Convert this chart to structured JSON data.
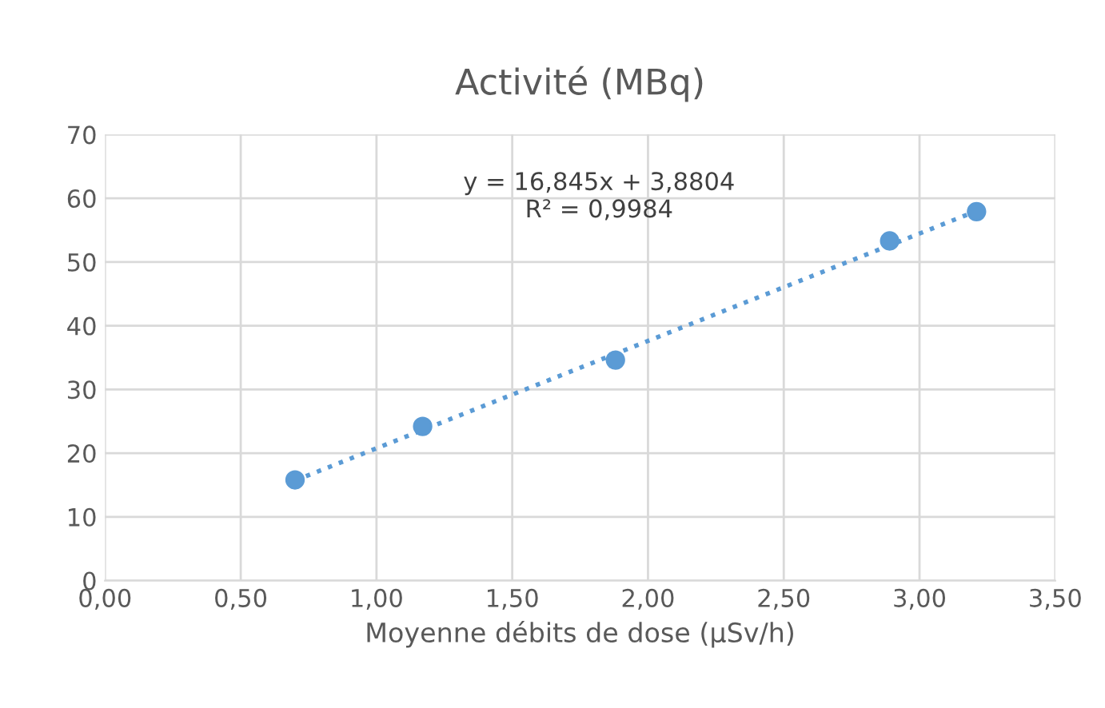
{
  "chart_data": {
    "type": "scatter",
    "title": "Activité (MBq)",
    "xlabel": "Moyenne débits de dose (µSv/h)",
    "annotations": [
      "y = 16,845x + 3,8804\nR² = 0,9984"
    ],
    "series": [
      {
        "color": "#5b9bd5",
        "marker": "circle",
        "x": [
          0.7,
          1.17,
          1.88,
          2.89,
          3.21
        ],
        "values": [
          15.8,
          24.2,
          34.6,
          53.3,
          57.9
        ]
      },
      {
        "type": "line",
        "color": "#5b9bd5",
        "line_style": "dotted",
        "marker": "none",
        "x": [
          0.7,
          3.21
        ],
        "values": [
          15.7,
          58.0
        ]
      }
    ],
    "xlim": [
      0,
      3.5
    ],
    "xticks": [
      {
        "value": 0,
        "label": "0,00"
      },
      {
        "value": 0.5,
        "label": "0,50"
      },
      {
        "value": 1,
        "label": "1,00"
      },
      {
        "value": 1.5,
        "label": "1,50"
      },
      {
        "value": 2,
        "label": "2,00"
      },
      {
        "value": 2.5,
        "label": "2,50"
      },
      {
        "value": 3,
        "label": "3,00"
      },
      {
        "value": 3.5,
        "label": "3,50"
      }
    ],
    "ylim": [
      0,
      70
    ],
    "yticks": [
      0,
      10,
      20,
      30,
      40,
      50,
      60,
      70
    ],
    "grid": true
  }
}
